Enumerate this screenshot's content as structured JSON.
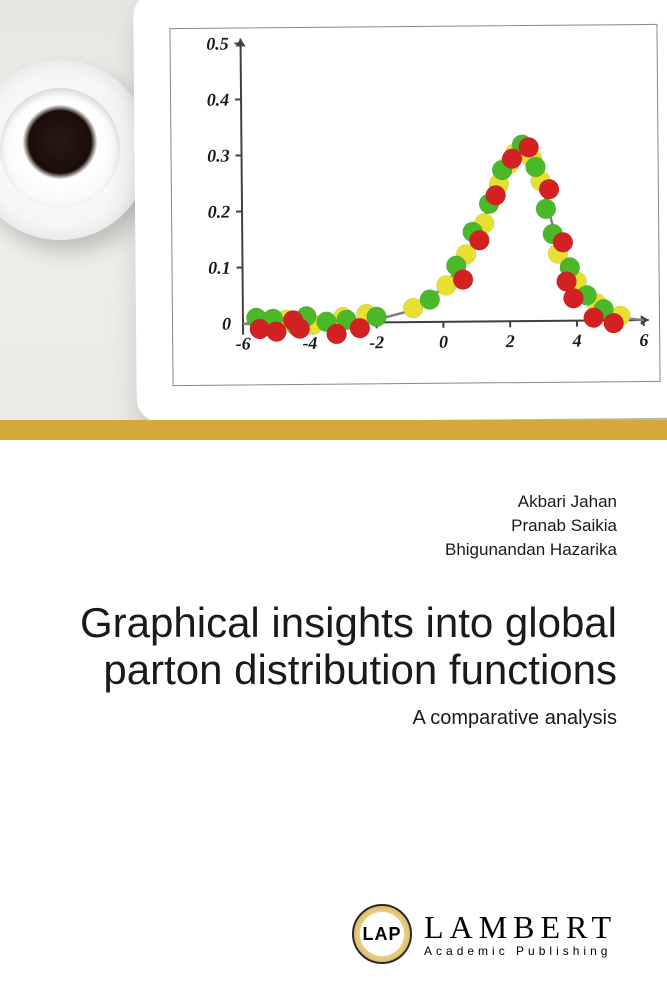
{
  "authors": [
    "Akbari Jahan",
    "Pranab Saikia",
    "Bhigunandan Hazarika"
  ],
  "title": "Graphical insights into global parton distribution functions",
  "subtitle": "A comparative analysis",
  "publisher": {
    "badge": "LAP",
    "name": "LAMBERT",
    "tagline": "Academic Publishing"
  },
  "chart": {
    "type": "scatter",
    "x_ticks": [
      -6,
      -4,
      -2,
      0,
      2,
      4,
      6
    ],
    "y_ticks": [
      0,
      0.1,
      0.2,
      0.3,
      0.4,
      0.5
    ],
    "ylim": [
      -0.02,
      0.5
    ],
    "xlim": [
      -6,
      6
    ],
    "axis_color": "#404040",
    "tick_fontsize": 18,
    "tick_fontweight": "bold",
    "tick_color": "#1a1a1a",
    "curve_color": "#808080",
    "curve_width": 2.5,
    "marker_size": 10,
    "colors": {
      "red": "#d32020",
      "green": "#4ab828",
      "yellow": "#e8e030"
    },
    "curve_points": [
      [
        -6,
        0
      ],
      [
        -5,
        -0.005
      ],
      [
        -4,
        -0.01
      ],
      [
        -3,
        -0.005
      ],
      [
        -2,
        0.005
      ],
      [
        -1,
        0.02
      ],
      [
        0,
        0.06
      ],
      [
        0.5,
        0.1
      ],
      [
        1,
        0.15
      ],
      [
        1.5,
        0.22
      ],
      [
        2,
        0.29
      ],
      [
        2.3,
        0.31
      ],
      [
        2.6,
        0.3
      ],
      [
        3,
        0.24
      ],
      [
        3.3,
        0.17
      ],
      [
        3.6,
        0.1
      ],
      [
        4,
        0.055
      ],
      [
        4.5,
        0.025
      ],
      [
        5,
        0.01
      ],
      [
        5.5,
        0.003
      ],
      [
        6,
        0
      ]
    ],
    "red_points": [
      [
        -5.5,
        -0.01
      ],
      [
        -5,
        -0.015
      ],
      [
        -4.5,
        0.005
      ],
      [
        -4.3,
        -0.01
      ],
      [
        -3.2,
        -0.02
      ],
      [
        -2.5,
        -0.01
      ],
      [
        0.6,
        0.075
      ],
      [
        1.1,
        0.145
      ],
      [
        1.6,
        0.225
      ],
      [
        2.1,
        0.29
      ],
      [
        2.6,
        0.31
      ],
      [
        3.2,
        0.235
      ],
      [
        3.6,
        0.14
      ],
      [
        3.7,
        0.07
      ],
      [
        3.9,
        0.04
      ],
      [
        4.5,
        0.005
      ],
      [
        5.1,
        -0.005
      ]
    ],
    "green_points": [
      [
        -5.6,
        0.01
      ],
      [
        -5.1,
        0.008
      ],
      [
        -4.4,
        -0.005
      ],
      [
        -4.1,
        0.012
      ],
      [
        -3.5,
        0.002
      ],
      [
        -2.9,
        0.005
      ],
      [
        -2.0,
        0.01
      ],
      [
        -0.4,
        0.04
      ],
      [
        0.4,
        0.1
      ],
      [
        0.9,
        0.16
      ],
      [
        1.4,
        0.21
      ],
      [
        1.8,
        0.27
      ],
      [
        2.4,
        0.315
      ],
      [
        2.8,
        0.275
      ],
      [
        3.1,
        0.2
      ],
      [
        3.3,
        0.155
      ],
      [
        3.8,
        0.095
      ],
      [
        4.3,
        0.045
      ],
      [
        4.8,
        0.02
      ]
    ],
    "yellow_points": [
      [
        -5.3,
        0.002
      ],
      [
        -4.7,
        0.006
      ],
      [
        -3.9,
        -0.003
      ],
      [
        -3.0,
        0.01
      ],
      [
        -2.3,
        0.015
      ],
      [
        -0.9,
        0.025
      ],
      [
        0.1,
        0.065
      ],
      [
        0.7,
        0.12
      ],
      [
        1.25,
        0.175
      ],
      [
        1.7,
        0.245
      ],
      [
        2.0,
        0.28
      ],
      [
        2.2,
        0.3
      ],
      [
        2.7,
        0.29
      ],
      [
        2.95,
        0.25
      ],
      [
        3.45,
        0.12
      ],
      [
        4.0,
        0.07
      ],
      [
        4.6,
        0.03
      ],
      [
        5.3,
        0.008
      ]
    ]
  },
  "colors": {
    "stripe": "#d4a938",
    "background": "#ffffff",
    "text": "#1a1a1a"
  }
}
